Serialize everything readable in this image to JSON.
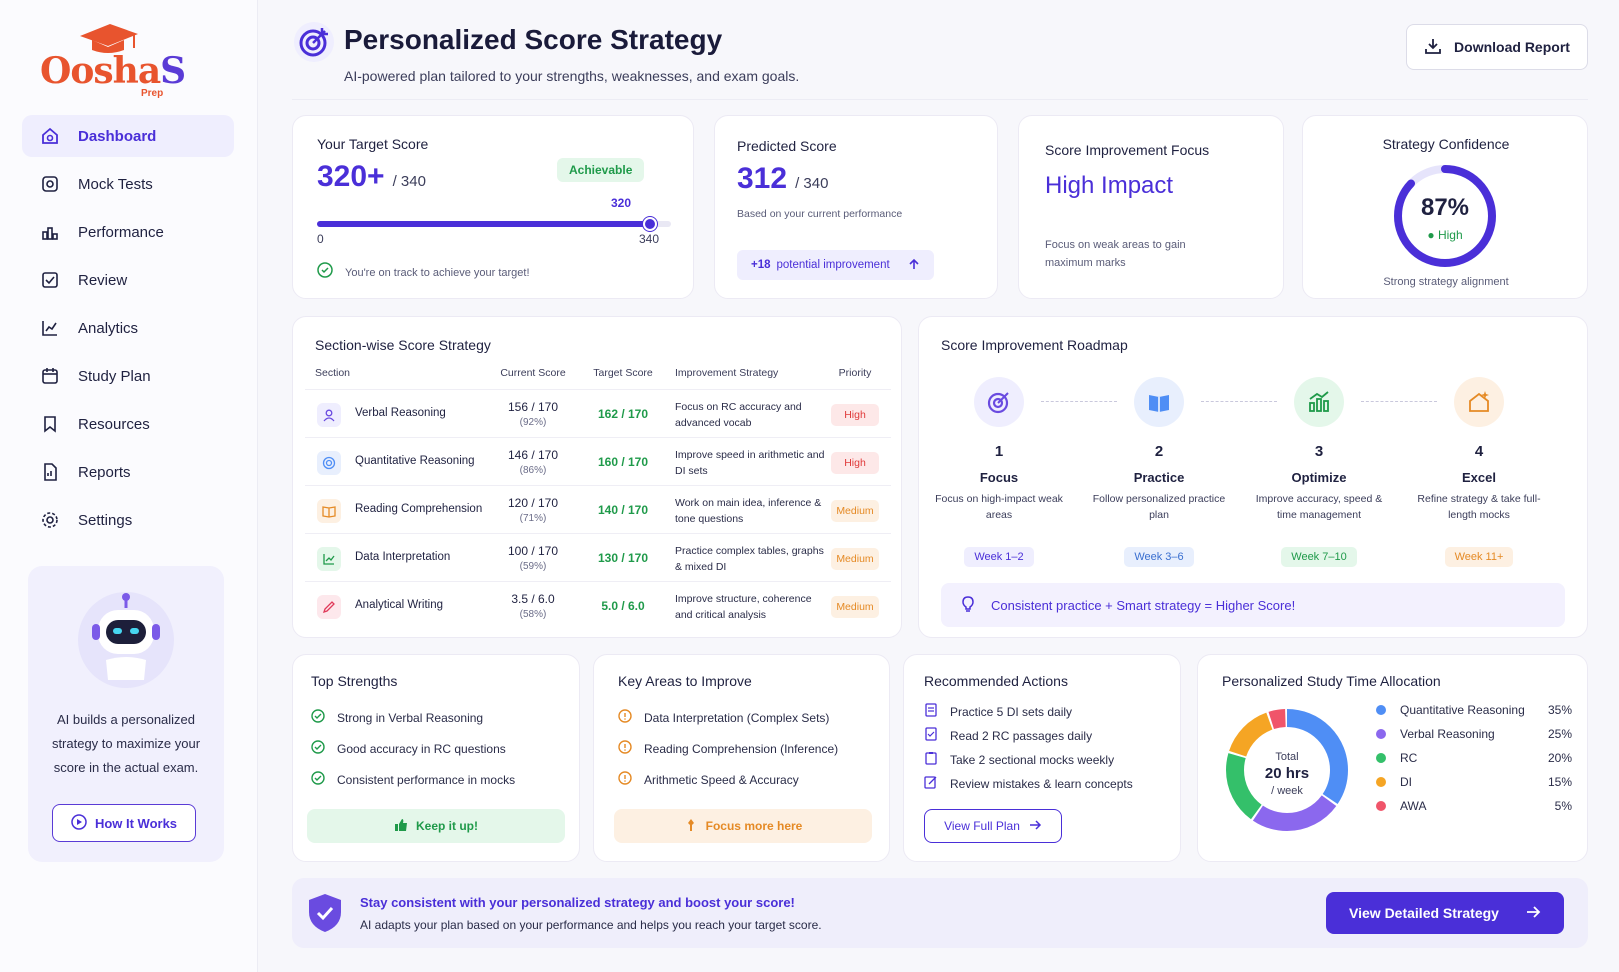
{
  "brand": {
    "name_o": "O",
    "name_rest": "osha",
    "name_s": "S",
    "sub": "Prep",
    "accent": "#4a2fd8",
    "orange": "#e8542e"
  },
  "sidebar": {
    "items": [
      {
        "label": "Dashboard",
        "icon": "dashboard-icon"
      },
      {
        "label": "Mock Tests",
        "icon": "camera-icon"
      },
      {
        "label": "Performance",
        "icon": "performance-icon"
      },
      {
        "label": "Review",
        "icon": "check-square-icon"
      },
      {
        "label": "Analytics",
        "icon": "line-chart-icon"
      },
      {
        "label": "Study Plan",
        "icon": "calendar-icon"
      },
      {
        "label": "Resources",
        "icon": "bookmark-icon"
      },
      {
        "label": "Reports",
        "icon": "report-icon"
      },
      {
        "label": "Settings",
        "icon": "gear-icon"
      }
    ],
    "ai_text": "AI builds a personalized strategy to maximize your score in the actual exam.",
    "how_btn": "How It Works"
  },
  "header": {
    "title": "Personalized Score Strategy",
    "subtitle": "AI-powered plan tailored to your strengths, weaknesses, and exam goals.",
    "download": "Download Report"
  },
  "target": {
    "title": "Your Target Score",
    "score": "320+",
    "denom": "/ 340",
    "badge": "Achievable",
    "marker": "320",
    "min": "0",
    "max": "340",
    "progress": 0.94,
    "status": "You're on track to achieve your target!"
  },
  "predicted": {
    "title": "Predicted Score",
    "score": "312",
    "denom": "/ 340",
    "note": "Based on your current performance",
    "improve_value": "+18",
    "improve_label": "potential improvement"
  },
  "focus": {
    "title": "Score Improvement Focus",
    "value": "High Impact",
    "note": "Focus on weak areas to gain maximum marks"
  },
  "confidence": {
    "title": "Strategy Confidence",
    "value": "87%",
    "level": "High",
    "fraction": 0.87,
    "note": "Strong strategy alignment"
  },
  "sections": {
    "title": "Section-wise Score Strategy",
    "headers": [
      "Section",
      "Current Score",
      "Target Score",
      "Improvement Strategy",
      "Priority"
    ],
    "rows": [
      {
        "name": "Verbal Reasoning",
        "current": "156 / 170",
        "pct": "(92%)",
        "target": "162 / 170",
        "strategy": "Focus on RC accuracy and advanced vocab",
        "priority": "High",
        "icon": "user-icon"
      },
      {
        "name": "Quantitative Reasoning",
        "current": "146 / 170",
        "pct": "(86%)",
        "target": "160 / 170",
        "strategy": "Improve speed in arithmetic and DI sets",
        "priority": "High",
        "icon": "target-icon"
      },
      {
        "name": "Reading Comprehension",
        "current": "120 / 170",
        "pct": "(71%)",
        "target": "140 / 170",
        "strategy": "Work on main idea, inference & tone questions",
        "priority": "Medium",
        "icon": "book-icon"
      },
      {
        "name": "Data Interpretation",
        "current": "100 / 170",
        "pct": "(59%)",
        "target": "130 / 170",
        "strategy": "Practice complex tables, graphs & mixed DI",
        "priority": "Medium",
        "icon": "chart-icon"
      },
      {
        "name": "Analytical Writing",
        "current": "3.5 / 6.0",
        "pct": "(58%)",
        "target": "5.0 / 6.0",
        "strategy": "Improve structure, coherence and critical analysis",
        "priority": "Medium",
        "icon": "pen-icon"
      }
    ]
  },
  "roadmap": {
    "title": "Score Improvement Roadmap",
    "steps": [
      {
        "num": "1",
        "name": "Focus",
        "desc": "Focus on high-impact weak areas",
        "week": "Week 1–2"
      },
      {
        "num": "2",
        "name": "Practice",
        "desc": "Follow personalized practice plan",
        "week": "Week 3–6"
      },
      {
        "num": "3",
        "name": "Optimize",
        "desc": "Improve accuracy, speed & time management",
        "week": "Week 7–10"
      },
      {
        "num": "4",
        "name": "Excel",
        "desc": "Refine strategy & take full-length mocks",
        "week": "Week 11+"
      }
    ],
    "banner": "Consistent practice + Smart strategy = Higher Score!"
  },
  "strengths": {
    "title": "Top Strengths",
    "items": [
      "Strong in Verbal Reasoning",
      "Good accuracy in RC questions",
      "Consistent performance in mocks"
    ],
    "button": "Keep it up!"
  },
  "improve": {
    "title": "Key Areas to Improve",
    "items": [
      "Data Interpretation (Complex Sets)",
      "Reading Comprehension (Inference)",
      "Arithmetic Speed & Accuracy"
    ],
    "button": "Focus more here"
  },
  "actions": {
    "title": "Recommended Actions",
    "items": [
      "Practice 5 DI sets daily",
      "Read 2 RC passages daily",
      "Take 2 sectional mocks weekly",
      "Review mistakes & learn concepts"
    ],
    "button": "View Full Plan"
  },
  "allocation": {
    "title": "Personalized Study Time Allocation",
    "total_label": "Total",
    "total": "20 hrs",
    "per": "/ week",
    "items": [
      {
        "name": "Quantitative Reasoning",
        "pct": "35%",
        "value": 35,
        "color": "#4f8ef5"
      },
      {
        "name": "Verbal Reasoning",
        "pct": "25%",
        "value": 25,
        "color": "#8b68ee"
      },
      {
        "name": "RC",
        "pct": "20%",
        "value": 20,
        "color": "#34c06a"
      },
      {
        "name": "DI",
        "pct": "15%",
        "value": 15,
        "color": "#f5a524"
      },
      {
        "name": "AWA",
        "pct": "5%",
        "value": 5,
        "color": "#f0556a"
      }
    ]
  },
  "banner": {
    "line1": "Stay consistent with your personalized strategy and boost your score!",
    "line2": "AI adapts your plan based on your performance and helps you reach your target score.",
    "button": "View Detailed Strategy"
  }
}
